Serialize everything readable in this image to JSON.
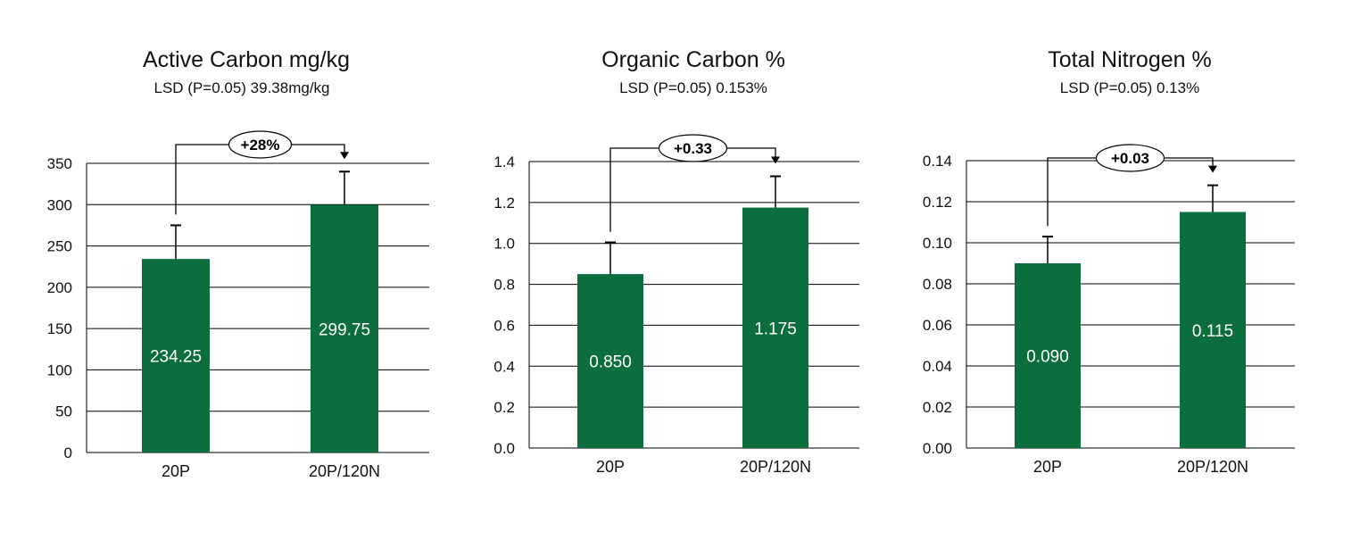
{
  "colors": {
    "bar": "#0b6e3c",
    "grid": "#000000",
    "text": "#111111"
  },
  "chart_data": [
    {
      "type": "bar",
      "title": "Active Carbon mg/kg",
      "subtitle": "LSD (P=0.05) 39.38mg/kg",
      "categories": [
        "20P",
        "20P/120N"
      ],
      "values": [
        234.25,
        299.75
      ],
      "value_labels": [
        "234.25",
        "299.75"
      ],
      "error_upper": [
        275,
        340
      ],
      "ylim": [
        0,
        350
      ],
      "yticks": [
        0,
        50,
        100,
        150,
        200,
        250,
        300,
        350
      ],
      "ytick_labels": [
        "0",
        "50",
        "100",
        "150",
        "200",
        "250",
        "300",
        "350"
      ],
      "annotation": {
        "text": "+28%",
        "from": 0,
        "to": 1
      },
      "grid": true,
      "legend": "none"
    },
    {
      "type": "bar",
      "title": "Organic Carbon %",
      "subtitle": "LSD (P=0.05) 0.153%",
      "categories": [
        "20P",
        "20P/120N"
      ],
      "values": [
        0.85,
        1.175
      ],
      "value_labels": [
        "0.850",
        "1.175"
      ],
      "error_upper": [
        1.005,
        1.328
      ],
      "ylim": [
        0,
        1.4
      ],
      "yticks": [
        0,
        0.2,
        0.4,
        0.6,
        0.8,
        1.0,
        1.2,
        1.4
      ],
      "ytick_labels": [
        "0.0",
        "0.2",
        "0.4",
        "0.6",
        "0.8",
        "1.0",
        "1.2",
        "1.4"
      ],
      "annotation": {
        "text": "+0.33",
        "from": 0,
        "to": 1
      },
      "grid": true,
      "legend": "none"
    },
    {
      "type": "bar",
      "title": "Total Nitrogen %",
      "subtitle": "LSD (P=0.05) 0.13%",
      "categories": [
        "20P",
        "20P/120N"
      ],
      "values": [
        0.09,
        0.115
      ],
      "value_labels": [
        "0.090",
        "0.115"
      ],
      "error_upper": [
        0.103,
        0.128
      ],
      "ylim": [
        0,
        0.14
      ],
      "yticks": [
        0,
        0.02,
        0.04,
        0.06,
        0.08,
        0.1,
        0.12,
        0.14
      ],
      "ytick_labels": [
        "0.00",
        "0.02",
        "0.04",
        "0.06",
        "0.08",
        "0.10",
        "0.12",
        "0.14"
      ],
      "annotation": {
        "text": "+0.03",
        "from": 0,
        "to": 1
      },
      "grid": true,
      "legend": "none"
    }
  ]
}
